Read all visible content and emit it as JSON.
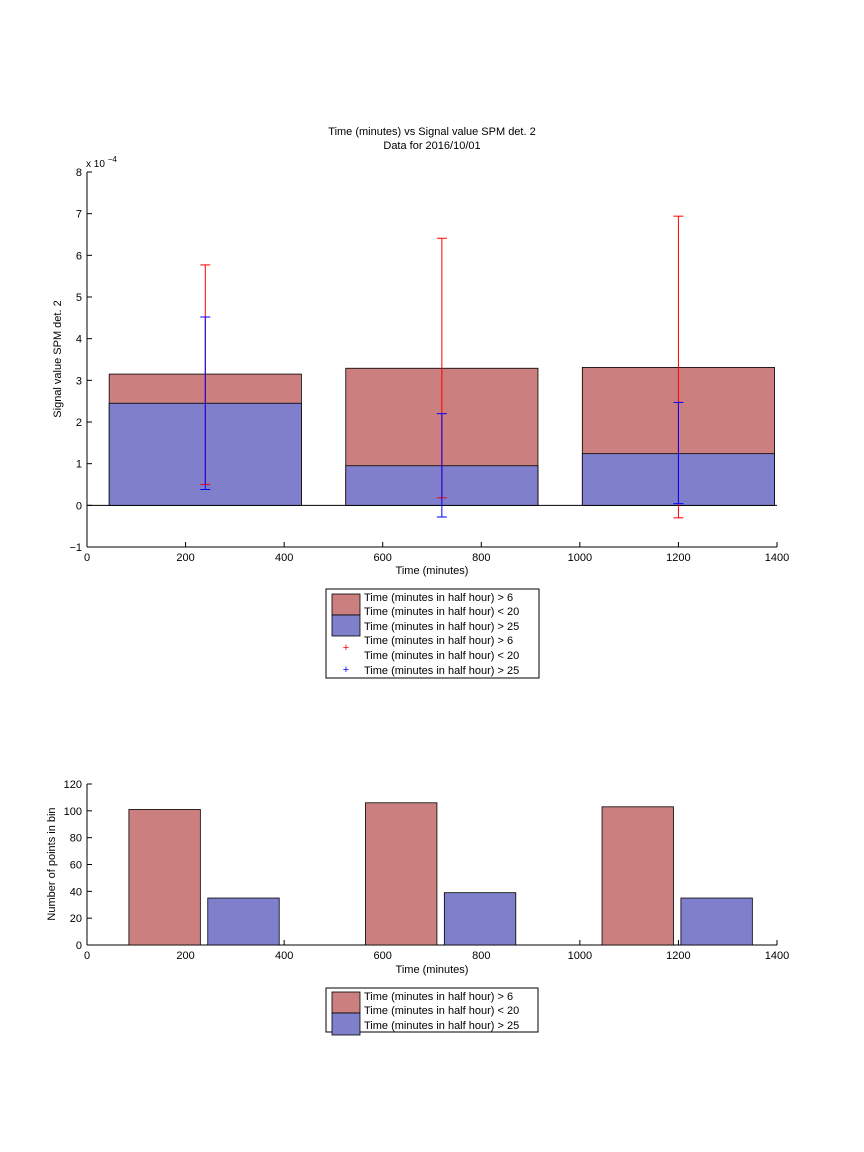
{
  "chart_data": [
    {
      "type": "bar",
      "title_lines": [
        "Time (minutes) vs Signal value SPM det. 2",
        "Data for 2016/10/01"
      ],
      "xlabel": "Time (minutes)",
      "ylabel": "Signal value SPM det. 2",
      "exponent_label": "x 10",
      "exponent_power": "−4",
      "xlim": [
        0,
        1400
      ],
      "ylim": [
        -1,
        8
      ],
      "xticks": [
        "0",
        "200",
        "400",
        "600",
        "800",
        "1000",
        "1200",
        "1400"
      ],
      "yticks": [
        "−1",
        "0",
        "1",
        "2",
        "3",
        "4",
        "5",
        "6",
        "7",
        "8"
      ],
      "bins": [
        {
          "x0": 45,
          "x1": 435,
          "center": 240
        },
        {
          "x0": 525,
          "x1": 915,
          "center": 720
        },
        {
          "x0": 1005,
          "x1": 1395,
          "center": 1200
        }
      ],
      "series": [
        {
          "name": "Time (minutes in half hour) > 6\nTime (minutes in half hour) < 20",
          "color": "#cc7f7f",
          "values": [
            3.15,
            3.29,
            3.31
          ],
          "errorbars": [
            {
              "x": 240,
              "low": 0.5,
              "high": 5.77
            },
            {
              "x": 720,
              "low": 0.18,
              "high": 6.41
            },
            {
              "x": 1200,
              "low": -0.3,
              "high": 6.94
            }
          ],
          "errorbar_color": "#ff0000"
        },
        {
          "name": "Time (minutes in half hour) > 25",
          "color": "#7f7fcc",
          "values": [
            2.45,
            0.95,
            1.24
          ],
          "errorbars": [
            {
              "x": 240,
              "low": 0.38,
              "high": 4.52
            },
            {
              "x": 720,
              "low": -0.28,
              "high": 2.2
            },
            {
              "x": 1200,
              "low": 0.04,
              "high": 2.47
            }
          ],
          "errorbar_color": "#0000ff"
        }
      ],
      "legend": [
        "Time (minutes in half hour) > 6",
        "Time (minutes in half hour) < 20",
        "Time (minutes in half hour) > 25",
        "Time (minutes in half hour) > 6",
        "Time (minutes in half hour) < 20",
        "Time (minutes in half hour) > 25"
      ],
      "grid": false
    },
    {
      "type": "bar",
      "xlabel": "Time (minutes)",
      "ylabel": "Number of points in bin",
      "xlim": [
        0,
        1400
      ],
      "ylim": [
        0,
        120
      ],
      "xticks": [
        "0",
        "200",
        "400",
        "600",
        "800",
        "1000",
        "1200",
        "1400"
      ],
      "yticks": [
        "0",
        "20",
        "40",
        "60",
        "80",
        "100",
        "120"
      ],
      "series": [
        {
          "name": "Time (minutes in half hour) > 6\nTime (minutes in half hour) < 20",
          "color": "#cc7f7f",
          "bars": [
            {
              "x0": 85,
              "x1": 230,
              "value": 101
            },
            {
              "x0": 565,
              "x1": 710,
              "value": 106
            },
            {
              "x0": 1045,
              "x1": 1190,
              "value": 103
            }
          ]
        },
        {
          "name": "Time (minutes in half hour) > 25",
          "color": "#7f7fcc",
          "bars": [
            {
              "x0": 245,
              "x1": 390,
              "value": 35
            },
            {
              "x0": 725,
              "x1": 870,
              "value": 39
            },
            {
              "x0": 1205,
              "x1": 1350,
              "value": 35
            }
          ]
        }
      ],
      "legend": [
        "Time (minutes in half hour) > 6",
        "Time (minutes in half hour) < 20",
        "Time (minutes in half hour) > 25"
      ],
      "grid": false
    }
  ]
}
